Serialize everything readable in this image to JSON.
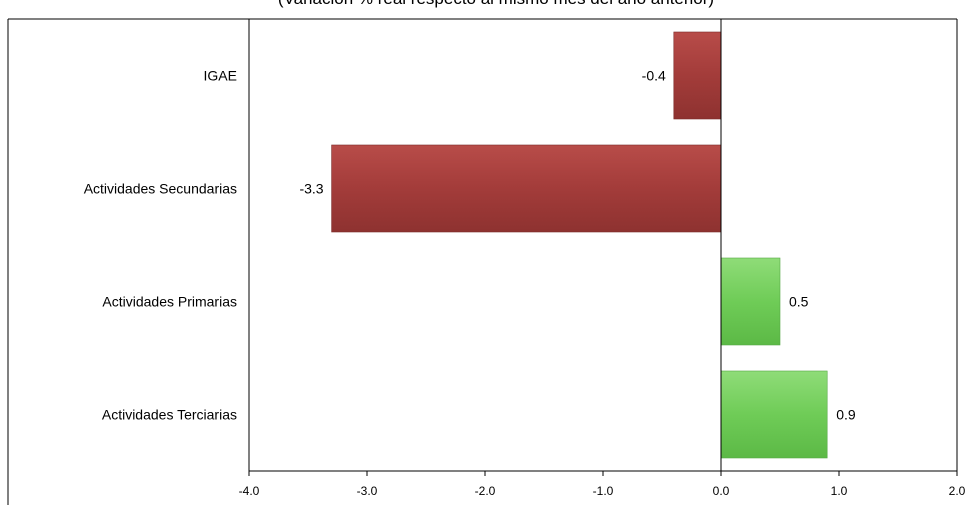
{
  "chart_data": {
    "type": "bar",
    "orientation": "horizontal",
    "subtitle": "(Variación  % real respecto al mismo mes del año anterior)",
    "categories": [
      "IGAE",
      "Actividades Secundarias",
      "Actividades  Primarias",
      "Actividades Terciarias"
    ],
    "values": [
      -0.4,
      -3.3,
      0.5,
      0.9
    ],
    "value_labels": [
      "-0.4",
      "-3.3",
      "0.5",
      "0.9"
    ],
    "bar_colors": [
      "#a33c3a",
      "#6fcc57",
      "#6fcc57",
      "#6fcc57"
    ],
    "xlim": [
      -4.0,
      2.0
    ],
    "xticks": [
      -4.0,
      -3.0,
      -2.0,
      -1.0,
      0.0,
      1.0,
      2.0
    ],
    "xtick_labels": [
      "-4.0",
      "-3.0",
      "-2.0",
      "-1.0",
      "0.0",
      "1.0",
      "2.0"
    ],
    "grid": false,
    "legend": "none"
  }
}
